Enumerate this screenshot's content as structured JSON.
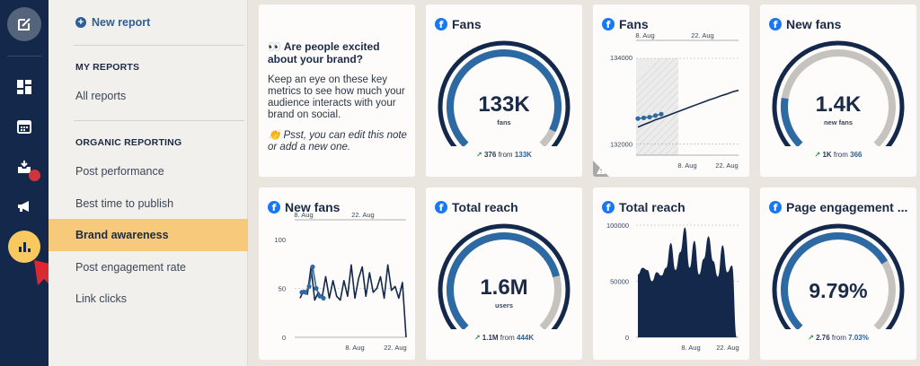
{
  "menu": {
    "new_report": "New report",
    "my_reports_head": "MY REPORTS",
    "all_reports": "All reports",
    "organic_head": "ORGANIC REPORTING",
    "items": [
      "Post performance",
      "Best time to publish",
      "Brand awareness",
      "Post engagement rate",
      "Link clicks"
    ],
    "active_item": "Brand awareness"
  },
  "note": {
    "headline": "👀 Are people excited about your brand?",
    "body": "Keep an eye on these key metrics to see how much your audience interacts with your brand on social.",
    "tip": "👏 Psst, you can edit this note or add a new one."
  },
  "cards": {
    "fans_gauge": {
      "title": "Fans",
      "value": "133K",
      "unit": "fans",
      "delta": "376",
      "from_label": "from",
      "from_value": "133K",
      "fill": 0.93
    },
    "fans_chart": {
      "title": "Fans"
    },
    "new_fans_gauge": {
      "title": "New fans",
      "value": "1.4K",
      "unit": "new fans",
      "delta": "1K",
      "from_label": "from",
      "from_value": "366",
      "fill": 0.2
    },
    "new_fans_chart": {
      "title": "New fans"
    },
    "reach_gauge": {
      "title": "Total reach",
      "value": "1.6M",
      "unit": "users",
      "delta": "1.1M",
      "from_label": "from",
      "from_value": "444K",
      "fill": 0.78
    },
    "reach_chart": {
      "title": "Total reach"
    },
    "engagement_gauge": {
      "title": "Page engagement ...",
      "value": "9.79%",
      "unit": "",
      "delta": "2.76",
      "from_label": "from",
      "from_value": "7.03%",
      "fill": 0.72
    }
  },
  "colors": {
    "navy": "#13284a",
    "blue": "#2d6aa3",
    "gray": "#c6c3bf",
    "accent": "#f7c95e"
  },
  "chart_data": [
    {
      "type": "line",
      "title": "Fans",
      "x_top_ticks": [
        "8. Aug",
        "22. Aug"
      ],
      "x_bottom_ticks": [
        "8. Aug",
        "22. Aug"
      ],
      "y_ticks": [
        "134000",
        "132000"
      ],
      "ylim": [
        131600,
        134300
      ],
      "series": [
        {
          "values": [
            132680,
            132700,
            132720,
            132760,
            132800
          ]
        },
        {
          "values": [
            132450,
            132520,
            132580,
            132650,
            132700,
            132760,
            132820,
            132880,
            132940,
            133000,
            133060,
            133120,
            133180,
            133230,
            133290,
            133340,
            133400,
            133440
          ]
        }
      ]
    },
    {
      "type": "line",
      "title": "New fans",
      "x_top_ticks": [
        "8. Aug",
        "22. Aug"
      ],
      "x_bottom_ticks": [
        "8. Aug",
        "22. Aug"
      ],
      "y_ticks": [
        "100",
        "50",
        "0"
      ],
      "ylim": [
        0,
        100
      ],
      "series": [
        {
          "values": [
            46,
            46,
            52,
            72,
            50,
            42,
            40
          ]
        },
        {
          "values": [
            40,
            48,
            44,
            72,
            38,
            46,
            40,
            62,
            40,
            58,
            42,
            38,
            58,
            42,
            74,
            40,
            60,
            72,
            42,
            66,
            46,
            50,
            62,
            40,
            74,
            48,
            52,
            40,
            56,
            0
          ]
        }
      ]
    },
    {
      "type": "area",
      "title": "Total reach",
      "x_bottom_ticks": [
        "8. Aug",
        "22. Aug"
      ],
      "y_ticks": [
        "100000",
        "50000",
        "0"
      ],
      "ylim": [
        0,
        100000
      ],
      "series": [
        {
          "values": [
            56000,
            62000,
            60000,
            50000,
            58000,
            55000,
            62000,
            84000,
            60000,
            76000,
            98000,
            62000,
            86000,
            56000,
            70000,
            90000,
            68000,
            54000,
            82000,
            58000,
            64000,
            0
          ]
        }
      ]
    }
  ]
}
